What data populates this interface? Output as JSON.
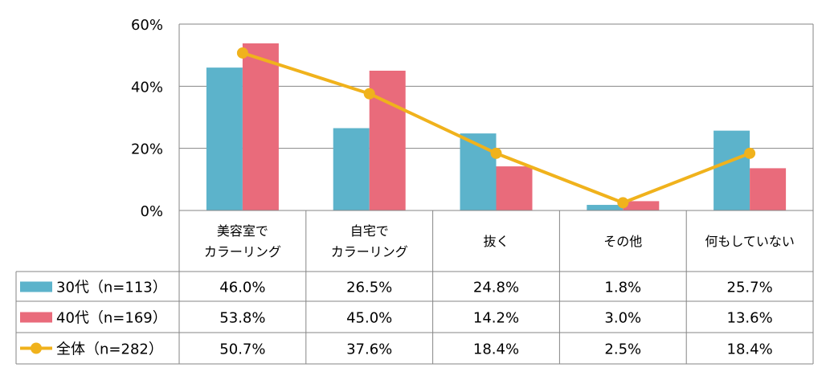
{
  "chart_data": {
    "type": "bar",
    "categories": [
      [
        "美容室で",
        "カラーリング"
      ],
      [
        "自宅で",
        "カラーリング"
      ],
      [
        "抜く"
      ],
      [
        "その他"
      ],
      [
        "何もしていない"
      ]
    ],
    "ylim": [
      0,
      60
    ],
    "yticks": [
      0,
      20,
      40,
      60
    ],
    "ytick_labels": [
      "0%",
      "20%",
      "40%",
      "60%"
    ],
    "grid": true,
    "series": [
      {
        "name": "30代（n=113）",
        "kind": "bar",
        "color": "#5cb3cb",
        "values": [
          46.0,
          26.5,
          24.8,
          1.8,
          25.7
        ],
        "labels": [
          "46.0%",
          "26.5%",
          "24.8%",
          "1.8%",
          "25.7%"
        ]
      },
      {
        "name": "40代（n=169）",
        "kind": "bar",
        "color": "#e96b7b",
        "values": [
          53.8,
          45.0,
          14.2,
          3.0,
          13.6
        ],
        "labels": [
          "53.8%",
          "45.0%",
          "14.2%",
          "3.0%",
          "13.6%"
        ]
      },
      {
        "name": "全体（n=282）",
        "kind": "line",
        "color": "#f0b21c",
        "values": [
          50.7,
          37.6,
          18.4,
          2.5,
          18.4
        ],
        "labels": [
          "50.7%",
          "37.6%",
          "18.4%",
          "2.5%",
          "18.4%"
        ]
      }
    ]
  }
}
